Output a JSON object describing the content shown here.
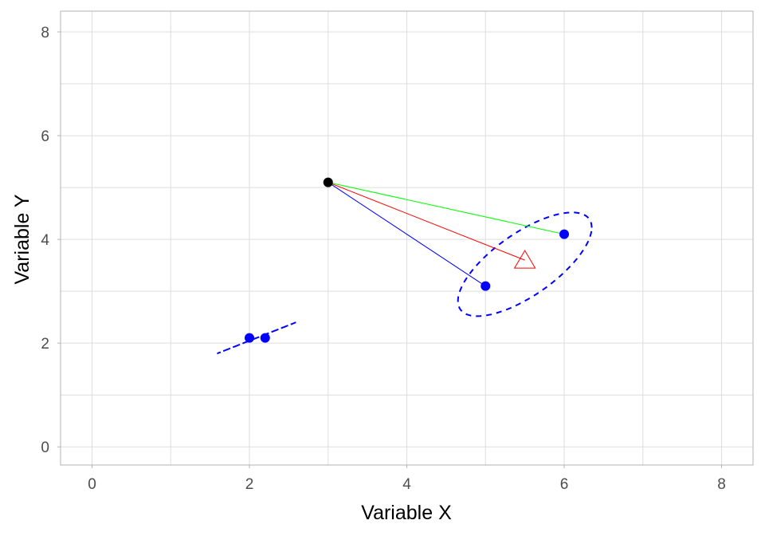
{
  "chart_data": {
    "type": "scatter",
    "title": "",
    "xlabel": "Variable X",
    "ylabel": "Variable Y",
    "xlim": [
      -0.4,
      8.4
    ],
    "ylim": [
      -0.35,
      8.4
    ],
    "grid": true,
    "grid_step": 1,
    "xticks": [
      0,
      2,
      4,
      6,
      8
    ],
    "yticks": [
      0,
      2,
      4,
      6,
      8
    ],
    "colors": {
      "points": "#0000ff",
      "origin": "#000000",
      "ellipse": "#0000ff",
      "line_a": "#00ff00",
      "line_b": "#0000ff",
      "line_c": "#ff0000",
      "grid": "#dddddd",
      "border": "#b3b3b3",
      "tick_text": "#4d4d4d"
    },
    "origin_point": {
      "x": 3,
      "y": 5.1
    },
    "points": [
      {
        "x": 2,
        "y": 2.1
      },
      {
        "x": 2.2,
        "y": 2.1
      },
      {
        "x": 5,
        "y": 3.1
      },
      {
        "x": 6,
        "y": 4.1
      }
    ],
    "target_marker": {
      "x": 5.5,
      "y": 3.6,
      "shape": "open-triangle"
    },
    "segments": [
      {
        "from": [
          3,
          5.1
        ],
        "to": [
          6,
          4.1
        ],
        "color": "line_a"
      },
      {
        "from": [
          3,
          5.1
        ],
        "to": [
          5,
          3.1
        ],
        "color": "line_b"
      },
      {
        "from": [
          3,
          5.1
        ],
        "to": [
          5.5,
          3.6
        ],
        "color": "line_c"
      }
    ],
    "ellipses": [
      {
        "cx": 2.09,
        "cy": 2.1,
        "rx": 0.5,
        "ry": 0.3,
        "phase_deg": 0
      },
      {
        "cx": 5.5,
        "cy": 3.52,
        "rx": 0.85,
        "ry": 1.0,
        "phase_deg": 45
      }
    ]
  }
}
